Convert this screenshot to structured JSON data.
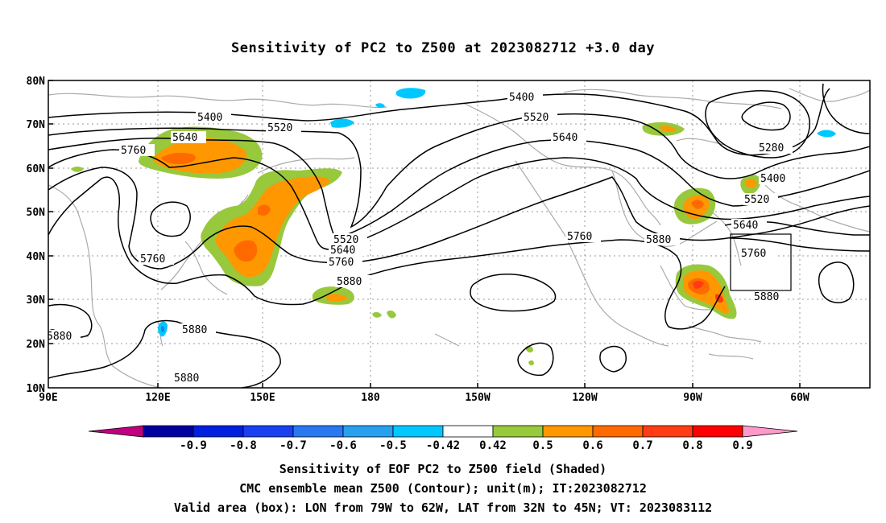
{
  "title": "Sensitivity of PC2 to Z500 at 2023082712 +3.0 day",
  "axes": {
    "lat_labels": [
      "80N",
      "70N",
      "60N",
      "50N",
      "40N",
      "30N",
      "20N",
      "10N"
    ],
    "lon_labels": [
      "90E",
      "120E",
      "150E",
      "180",
      "150W",
      "120W",
      "90W",
      "60W"
    ]
  },
  "contour_labels": [
    "5400",
    "5520",
    "5640",
    "5760",
    "5880",
    "5280"
  ],
  "colorbar": {
    "labels": [
      "-0.9",
      "-0.8",
      "-0.7",
      "-0.6",
      "-0.5",
      "-0.42",
      "0.42",
      "0.5",
      "0.6",
      "0.7",
      "0.8",
      "0.9"
    ],
    "colors": [
      "#c0007f",
      "#0000a0",
      "#0020e0",
      "#1840f0",
      "#2878f0",
      "#28a0f0",
      "#00c8ff",
      "#ffffff",
      "#98c83c",
      "#ff9800",
      "#ff6a00",
      "#ff3c14",
      "#ff0000",
      "#ff99cc"
    ]
  },
  "captions": [
    "Sensitivity of EOF PC2 to Z500 field (Shaded)",
    "CMC ensemble mean Z500 (Contour); unit(m); IT:2023082712",
    "Valid area (box): LON from 79W to 62W, LAT from 32N to 45N; VT: 2023083112"
  ]
}
